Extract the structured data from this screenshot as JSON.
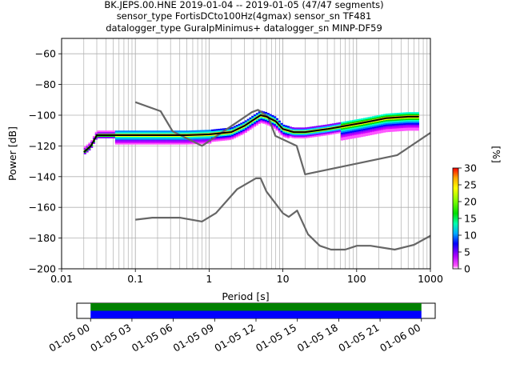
{
  "header": {
    "line1": "BK.JEPS.00.HNE   2019-01-04 -- 2019-01-05  (47/47 segments)",
    "line2": "sensor_type FortisDCto100Hz(4gmax) sensor_sn TF481",
    "line3": "datalogger_type GuralpMinimus+ datalogger_sn MINP-DF59"
  },
  "chart_data": [
    {
      "type": "heatmap",
      "title": "BK.JEPS.00.HNE   2019-01-04 -- 2019-01-05  (47/47 segments)",
      "xlabel": "Period [s]",
      "ylabel": "Power [dB]",
      "xscale": "log",
      "xlim": [
        0.01,
        1000
      ],
      "ylim": [
        -200,
        -50
      ],
      "xticks": [
        0.01,
        0.1,
        1,
        10,
        100,
        1000
      ],
      "xtick_labels": [
        "0.01",
        "0.1",
        "1",
        "10",
        "100",
        "1000"
      ],
      "yticks": [
        -200,
        -180,
        -160,
        -140,
        -120,
        -100,
        -80,
        -60
      ],
      "ytick_labels": [
        "−200",
        "−180",
        "−160",
        "−140",
        "−120",
        "−100",
        "−80",
        "−60"
      ],
      "grid": true,
      "colorbar": {
        "label": "[%]",
        "range": [
          0,
          30
        ],
        "ticks": [
          0,
          5,
          10,
          15,
          20,
          25,
          30
        ],
        "tick_labels": [
          "0",
          "5",
          "10",
          "15",
          "20",
          "25",
          "30"
        ]
      },
      "series": [
        {
          "role": "noise model upper",
          "color": "#666666",
          "x": [
            0.1,
            0.22,
            0.32,
            0.8,
            3.8,
            4.6,
            6.3,
            7.9,
            15.4,
            20,
            354.8,
            1000
          ],
          "y": [
            -91.5,
            -97.4,
            -110.5,
            -120,
            -98,
            -96.5,
            -101,
            -113.5,
            -120,
            -138.5,
            -126,
            -111.5
          ]
        },
        {
          "role": "noise model lower",
          "color": "#666666",
          "x": [
            0.1,
            0.17,
            0.4,
            0.8,
            1.24,
            2.4,
            4.3,
            5.0,
            6.0,
            10,
            12,
            15.6,
            21.9,
            31.6,
            45,
            70,
            101,
            154,
            328,
            600,
            1000
          ],
          "y": [
            -168,
            -166.7,
            -166.7,
            -169.2,
            -163.7,
            -148.1,
            -141.1,
            -141.1,
            -149.7,
            -163.8,
            -166.2,
            -162.1,
            -177.5,
            -185,
            -187.5,
            -187.5,
            -185,
            -185,
            -187.5,
            -184.4,
            -178.5
          ]
        },
        {
          "role": "median",
          "color": "#000000",
          "x": [
            0.02,
            0.025,
            0.03,
            0.05,
            0.1,
            0.5,
            1.0,
            2.0,
            3.0,
            4.0,
            5.0,
            6.0,
            8.0,
            10,
            14,
            20,
            40,
            70,
            120,
            250,
            500,
            700
          ],
          "y": [
            -124,
            -120,
            -113,
            -113,
            -113,
            -113,
            -112.5,
            -111,
            -107,
            -103,
            -100,
            -101,
            -104,
            -109,
            -111,
            -111,
            -109,
            -107,
            -105,
            -102,
            -101,
            -101
          ]
        }
      ]
    },
    {
      "type": "bar",
      "title": "",
      "xlabel": "",
      "ylabel": "",
      "x_unit": "time",
      "xlim": [
        "2019-01-04 23:00",
        "2019-01-06 01:00"
      ],
      "xtick_labels": [
        "01-05 00",
        "01-05 03",
        "01-05 06",
        "01-05 09",
        "01-05 12",
        "01-05 15",
        "01-05 18",
        "01-05 21",
        "01-06 00"
      ],
      "series": [
        {
          "role": "data coverage",
          "color": "#008000",
          "start": "2019-01-05 00:00",
          "end": "2019-01-06 00:00"
        },
        {
          "role": "psd coverage",
          "color": "#0000ff",
          "start": "2019-01-05 00:00",
          "end": "2019-01-06 00:00"
        }
      ]
    }
  ]
}
